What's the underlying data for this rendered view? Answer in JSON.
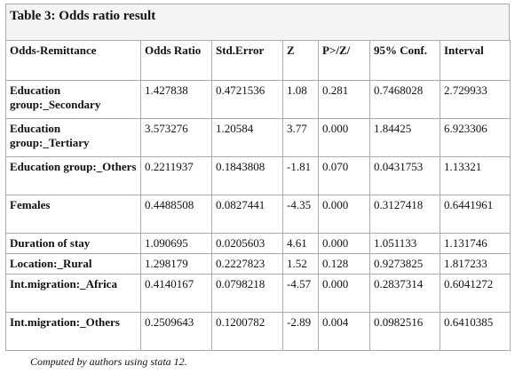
{
  "title": "Table 3: Odds ratio result",
  "table": {
    "header": [
      "Odds-Remittance",
      "Odds Ratio",
      "Std.Error",
      "Z",
      "P>/Z/",
      "95% Conf.",
      "Interval"
    ],
    "rows": [
      [
        "Education group:_Secondary",
        "1.427838",
        "0.4721536",
        "1.08",
        "0.281",
        "0.7468028",
        "2.729933"
      ],
      [
        "Education group:_Tertiary",
        "3.573276",
        "1.20584",
        "3.77",
        "0.000",
        "1.84425",
        "6.923306"
      ],
      [
        "Education group:_Others",
        "0.2211937",
        "0.1843808",
        "-1.81",
        "0.070",
        "0.0431753",
        "1.13321"
      ],
      [
        "Females",
        "0.4488508",
        "0.0827441",
        "-4.35",
        "0.000",
        "0.3127418",
        "0.6441961"
      ],
      [
        "Duration of stay",
        "1.090695",
        "0.0205603",
        "4.61",
        "0.000",
        "1.051133",
        "1.131746"
      ],
      [
        "Location:_Rural",
        "1.298179",
        "0.2227823",
        "1.52",
        "0.128",
        "0.9273825",
        "1.817233"
      ],
      [
        "Int.migration:_Africa",
        "0.4140167",
        "0.0798218",
        "-4.57",
        "0.000",
        "0.2837314",
        "0.6041272"
      ],
      [
        "Int.migration:_Others",
        "0.2509643",
        "0.1200782",
        "-2.89",
        "0.004",
        "0.0982516",
        "0.6410385"
      ]
    ]
  },
  "note": "Computed by authors using stata 12."
}
